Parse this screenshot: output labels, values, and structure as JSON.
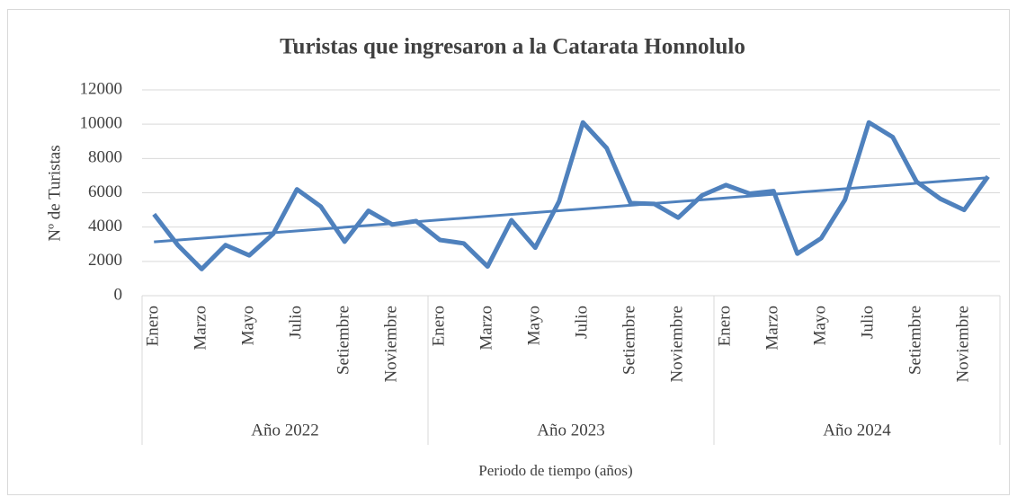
{
  "chart_data": {
    "type": "line",
    "title": "Turistas que ingresaron a la Catarata Honnolulo",
    "y_label": "Nº de Turistas",
    "x_label": "Periodo de tiempo (años)",
    "categories": [
      "Enero",
      null,
      "Marzo",
      null,
      "Mayo",
      null,
      "Julio",
      null,
      "Setiembre",
      null,
      "Noviembre",
      null,
      "Enero",
      null,
      "Marzo",
      null,
      "Mayo",
      null,
      "Julio",
      null,
      "Setiembre",
      null,
      "Noviembre",
      null,
      "Enero",
      null,
      "Marzo",
      null,
      "Mayo",
      null,
      "Julio",
      null,
      "Setiembre",
      null,
      "Noviembre",
      null
    ],
    "groups": [
      "Año 2022",
      "Año 2023",
      "Año 2024"
    ],
    "series": [
      {
        "color": "#4f81bd",
        "values": [
          4750,
          2950,
          1550,
          2950,
          2350,
          3600,
          6200,
          5200,
          3150,
          4950,
          4150,
          4350,
          3250,
          3050,
          1700,
          4400,
          2800,
          5500,
          10100,
          8600,
          5400,
          5350,
          4550,
          5850,
          6450,
          5950,
          6100,
          2450,
          3350,
          5600,
          10100,
          9250,
          6650,
          5650,
          5000,
          6950
        ]
      }
    ],
    "trendline": "linear",
    "ylim": [
      0,
      12000
    ],
    "yticks": [
      0,
      2000,
      4000,
      6000,
      8000,
      10000,
      12000
    ],
    "grid": true
  }
}
